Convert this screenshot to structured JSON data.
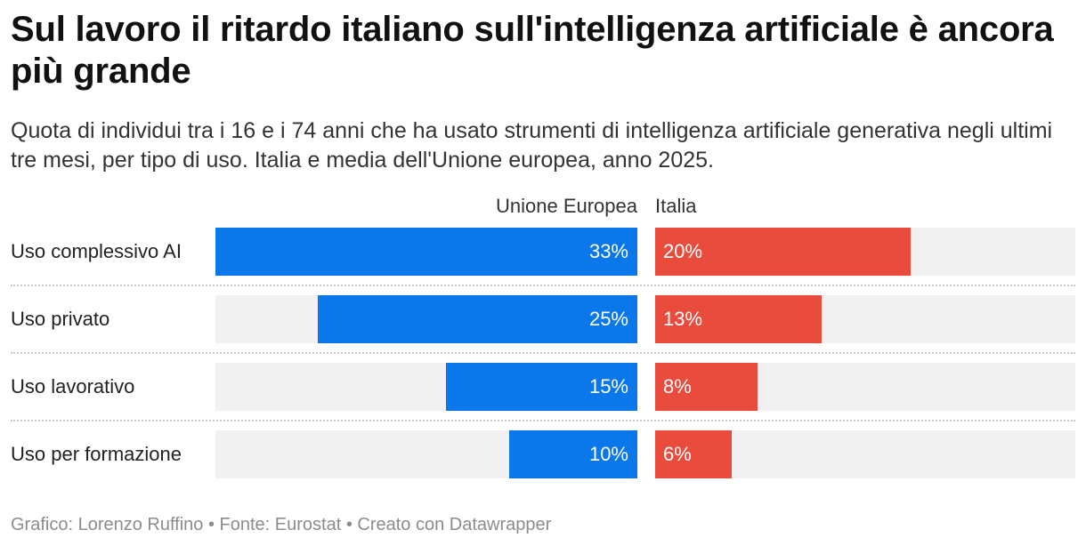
{
  "title": "Sul lavoro il ritardo italiano sull'intelligenza artificiale è ancora più grande",
  "subtitle": "Quota di individui tra i 16 e i 74 anni che ha usato strumenti di intelligenza artificiale generativa negli ultimi tre mesi, per tipo di uso. Italia e media dell'Unione europea, anno 2025.",
  "footer": "Grafico: Lorenzo Ruffino • Fonte: Eurostat • Creato con Datawrapper",
  "colors": {
    "eu": "#0a78ea",
    "italia": "#e94b3c",
    "track": "#f1f1f1"
  },
  "chart_data": {
    "type": "bar",
    "title": "Sul lavoro il ritardo italiano sull'intelligenza artificiale è ancora più grande",
    "categories": [
      "Uso complessivo AI",
      "Uso privato",
      "Uso lavorativo",
      "Uso per formazione"
    ],
    "series": [
      {
        "name": "Unione Europea",
        "values": [
          33,
          25,
          15,
          10
        ],
        "labels": [
          "33%",
          "25%",
          "15%",
          "10%"
        ]
      },
      {
        "name": "Italia",
        "values": [
          20,
          13,
          8,
          6
        ],
        "labels": [
          "20%",
          "13%",
          "8%",
          "6%"
        ]
      }
    ],
    "xlim": [
      0,
      33
    ],
    "unit": "%"
  }
}
